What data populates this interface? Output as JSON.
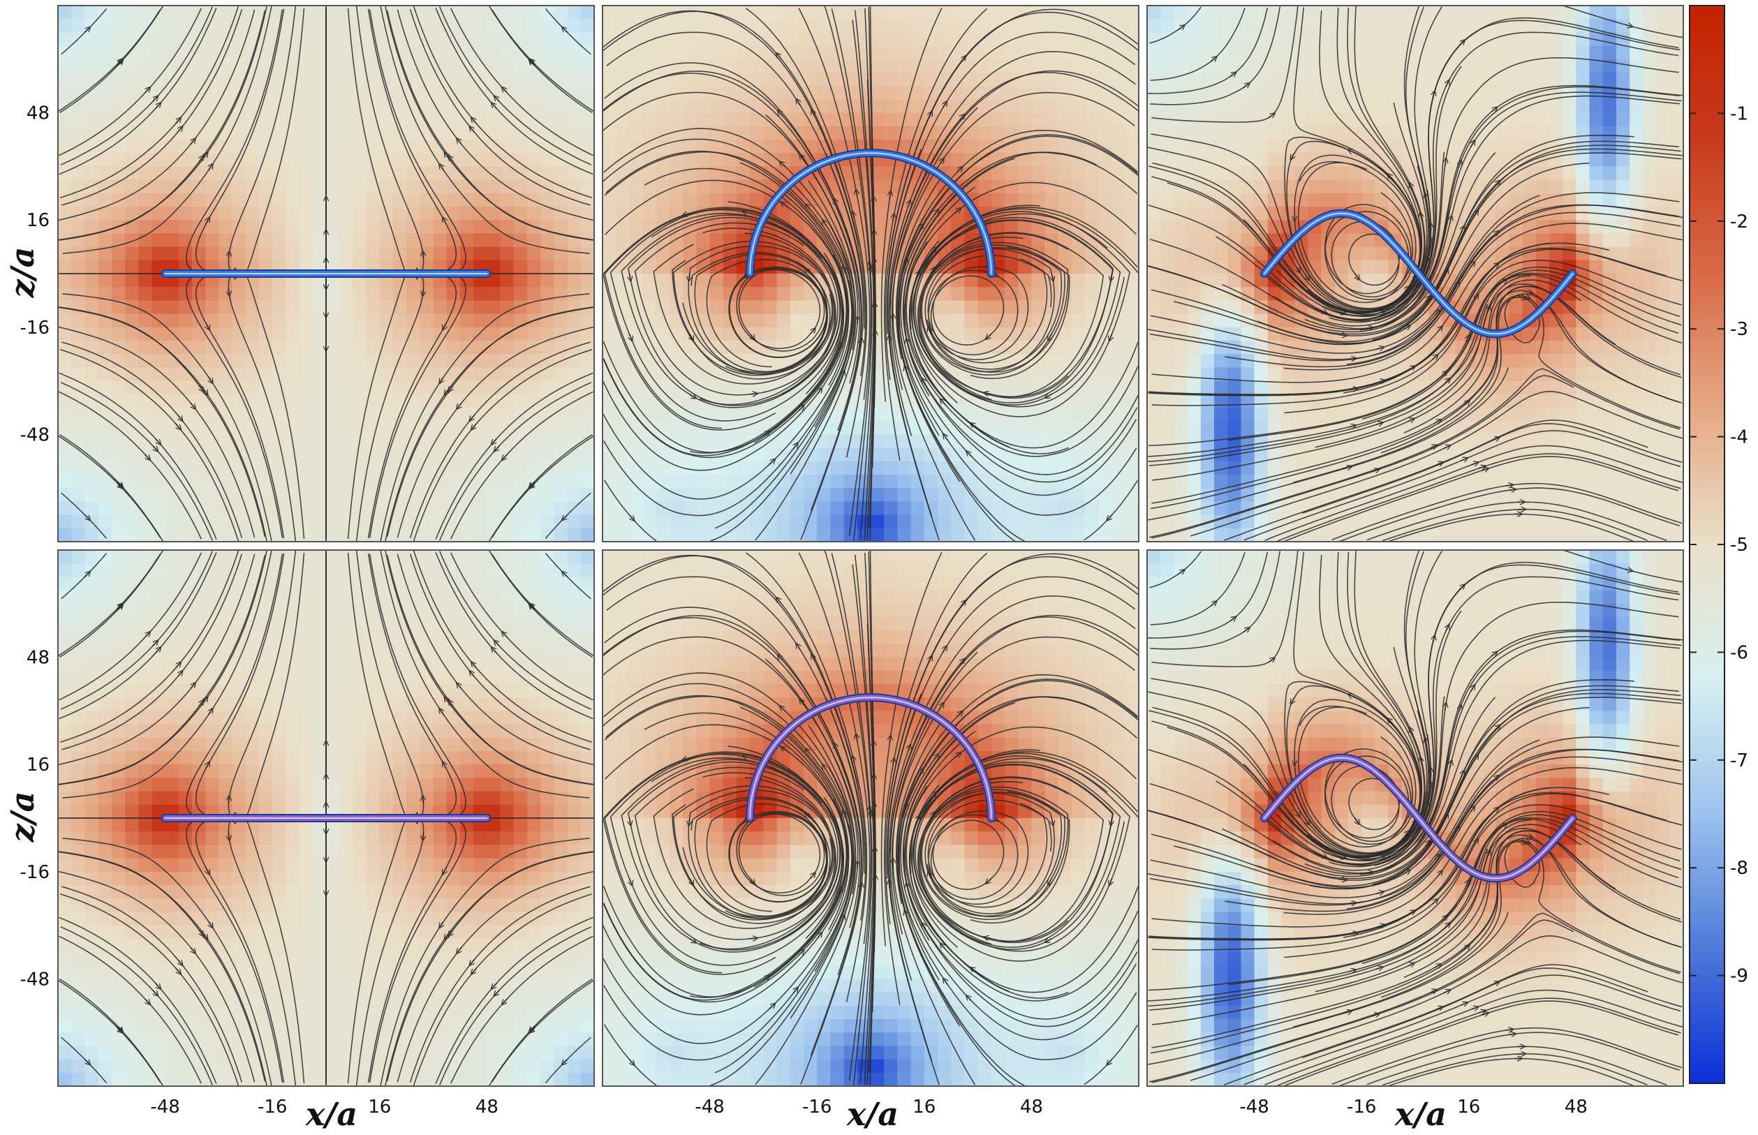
{
  "chart_data": {
    "type": "heatmap",
    "layout": {
      "rows": 2,
      "cols": 3
    },
    "x_axis": {
      "label": "x/a",
      "range": [
        -80,
        80
      ],
      "ticks": [
        "-48",
        "-16",
        "16",
        "48"
      ]
    },
    "z_axis": {
      "label": "z/a",
      "range": [
        -80,
        80
      ],
      "ticks": [
        "48",
        "16",
        "-16",
        "-48"
      ]
    },
    "colorbar": {
      "range": [
        -10,
        0
      ],
      "ticks": [
        "-1",
        "-2",
        "-3",
        "-4",
        "-5",
        "-6",
        "-7",
        "-8",
        "-9"
      ],
      "colors": [
        "#0a2fd9",
        "#4f7ad8",
        "#9cc2ee",
        "#d8f0f0",
        "#eadfc8",
        "#e5a884",
        "#d96a48",
        "#c83a1e",
        "#c42200"
      ]
    },
    "panels": [
      {
        "row": 0,
        "col": 0,
        "filament": "straight",
        "filament_color": "#3b7be0",
        "x_ticks_shown": false,
        "z_ticks_shown": true
      },
      {
        "row": 0,
        "col": 1,
        "filament": "semicircle",
        "filament_color": "#3b7be0",
        "x_ticks_shown": false,
        "z_ticks_shown": false
      },
      {
        "row": 0,
        "col": 2,
        "filament": "sine",
        "filament_color": "#3b7be0",
        "x_ticks_shown": false,
        "z_ticks_shown": false
      },
      {
        "row": 1,
        "col": 0,
        "filament": "straight",
        "filament_color": "#8a62c8",
        "x_ticks_shown": true,
        "z_ticks_shown": true
      },
      {
        "row": 1,
        "col": 1,
        "filament": "semicircle",
        "filament_color": "#8a62c8",
        "x_ticks_shown": true,
        "z_ticks_shown": false
      },
      {
        "row": 1,
        "col": 2,
        "filament": "sine",
        "filament_color": "#8a62c8",
        "x_ticks_shown": true,
        "z_ticks_shown": false
      }
    ]
  }
}
